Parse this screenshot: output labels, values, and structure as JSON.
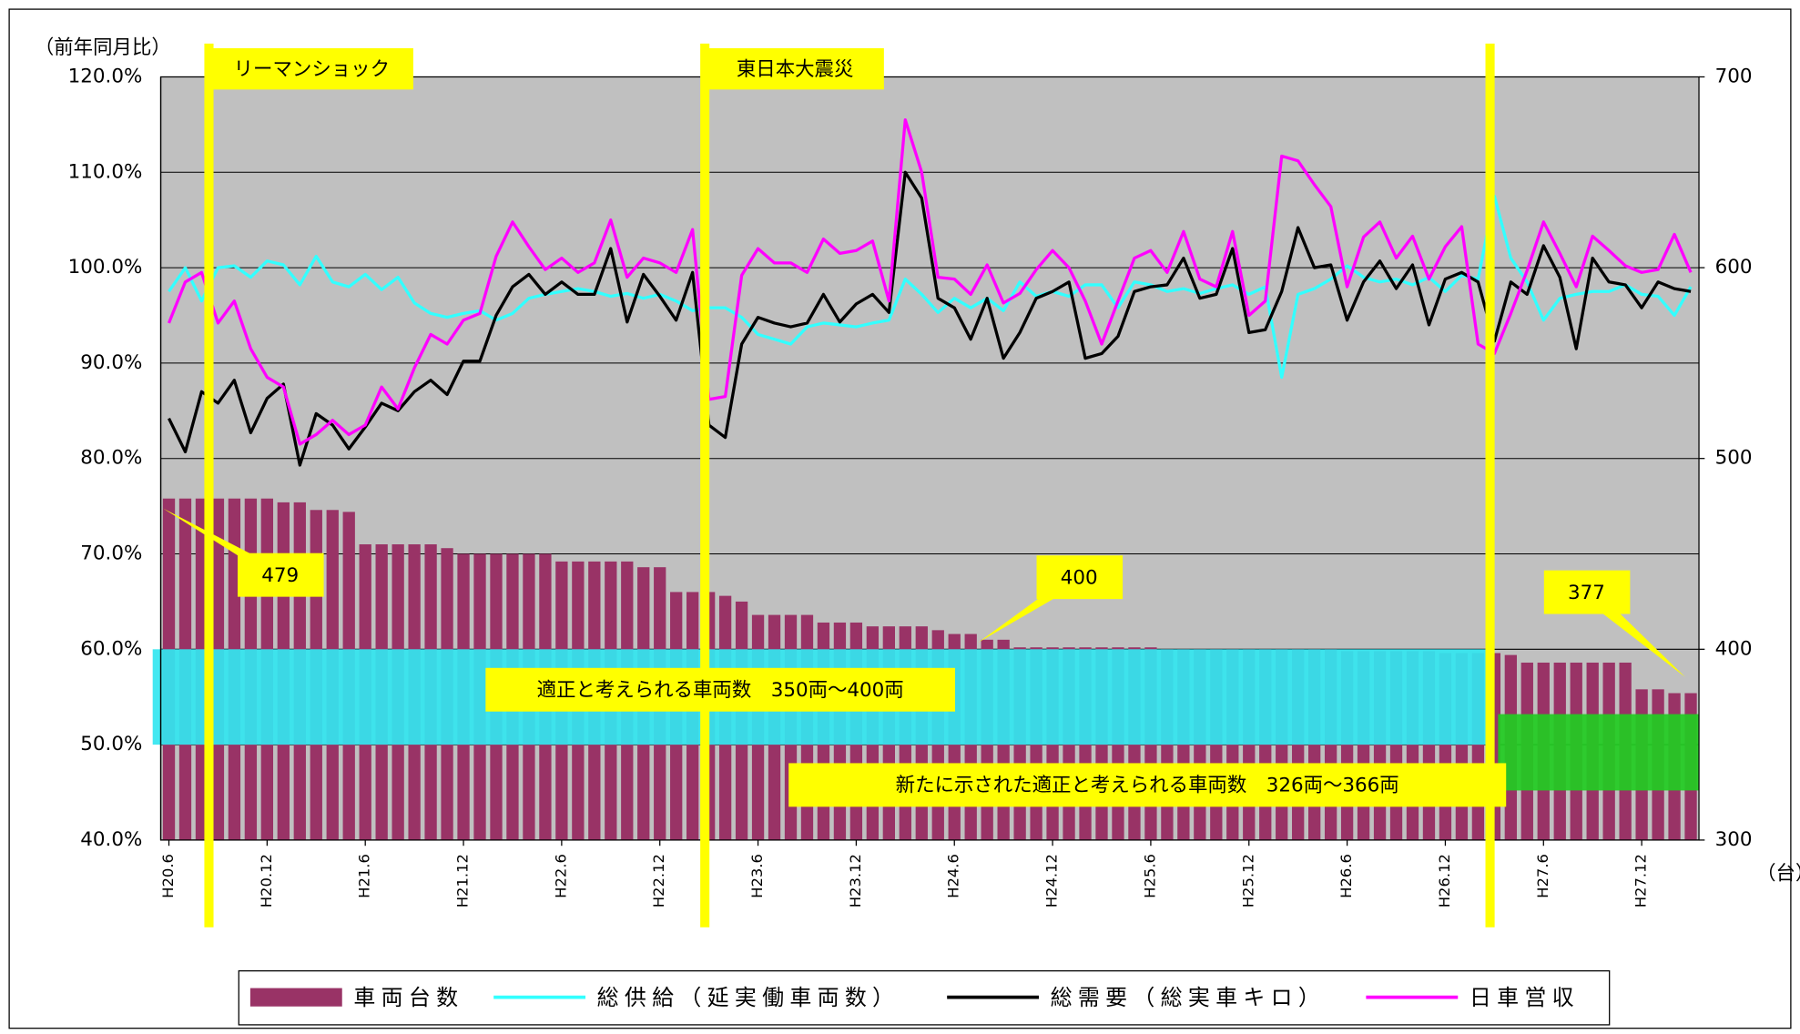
{
  "chart_data": {
    "type": "combo",
    "y_label": "（前年同月比）",
    "y2_label": "（台）",
    "categories": [
      "H20.6",
      null,
      null,
      null,
      null,
      null,
      "H20.12",
      null,
      null,
      null,
      null,
      null,
      "H21.6",
      null,
      null,
      null,
      null,
      null,
      "H21.12",
      null,
      null,
      null,
      null,
      null,
      "H22.6",
      null,
      null,
      null,
      null,
      null,
      "H22.12",
      null,
      null,
      null,
      null,
      null,
      "H23.6",
      null,
      null,
      null,
      null,
      null,
      "H23.12",
      null,
      null,
      null,
      null,
      null,
      "H24.6",
      null,
      null,
      null,
      null,
      null,
      "H24.12",
      null,
      null,
      null,
      null,
      null,
      "H25.6",
      null,
      null,
      null,
      null,
      null,
      "H25.12",
      null,
      null,
      null,
      null,
      null,
      "H26.6",
      null,
      null,
      null,
      null,
      null,
      "H26.12",
      null,
      null,
      null,
      null,
      null,
      "H27.6",
      null,
      null,
      null,
      null,
      null,
      "H27.12",
      null,
      null,
      null
    ],
    "series": [
      {
        "name": "車両台数",
        "type": "bar",
        "axis": "y2",
        "color": "#993366",
        "values": [
          479,
          479,
          479,
          479,
          479,
          479,
          479,
          477,
          477,
          473,
          473,
          472,
          455,
          455,
          455,
          455,
          455,
          453,
          450,
          450,
          450,
          450,
          450,
          450,
          446,
          446,
          446,
          446,
          446,
          443,
          443,
          430,
          430,
          430,
          428,
          425,
          418,
          418,
          418,
          418,
          414,
          414,
          414,
          412,
          412,
          412,
          412,
          410,
          408,
          408,
          405,
          405,
          401,
          401,
          401,
          401,
          401,
          401,
          401,
          401,
          401,
          400,
          400,
          400,
          400,
          400,
          400,
          400,
          400,
          400,
          400,
          400,
          399,
          399,
          399,
          399,
          399,
          399,
          398,
          398,
          398,
          398,
          397,
          393,
          393,
          393,
          393,
          393,
          393,
          393,
          379,
          379,
          377,
          377
        ]
      },
      {
        "name": "総供給（延実働車両数）",
        "type": "line",
        "axis": "y",
        "color": "#33ffff",
        "values": [
          97.5,
          100,
          96.5,
          100,
          100.2,
          99,
          100.7,
          100.3,
          98.2,
          101.2,
          98.5,
          98,
          99.3,
          97.7,
          99,
          96.3,
          95.2,
          94.8,
          95.2,
          95.5,
          94.5,
          95.2,
          96.8,
          97.2,
          97.5,
          97.8,
          97.5,
          97,
          97.3,
          96.8,
          97.2,
          96.5,
          95.5,
          95.8,
          95.8,
          94.8,
          93,
          92.5,
          92,
          93.8,
          94.2,
          94,
          93.8,
          94.2,
          94.5,
          98.8,
          97.2,
          95.3,
          96.8,
          95.8,
          96.8,
          95.5,
          98.5,
          97,
          97.5,
          97,
          98.2,
          98.2,
          95.8,
          98.5,
          98.2,
          97.5,
          97.8,
          97.3,
          97.8,
          98.2,
          97.2,
          98,
          88.5,
          97.2,
          97.8,
          98.8,
          100.2,
          99,
          98.5,
          98.8,
          98.2,
          99,
          97.5,
          99.2,
          98.8,
          107.5,
          101,
          98.5,
          94.5,
          96.8,
          97.2,
          97.5,
          97.5,
          98.2,
          97.2,
          97,
          95,
          98
        ]
      },
      {
        "name": "総需要（総実車キロ）",
        "type": "line",
        "axis": "y",
        "color": "#000000",
        "values": [
          84.2,
          80.7,
          87,
          85.8,
          88.2,
          82.7,
          86.3,
          87.8,
          79.3,
          84.7,
          83.5,
          81,
          83.3,
          85.8,
          85,
          87,
          88.2,
          86.7,
          90.2,
          90.2,
          95,
          98,
          99.3,
          97.2,
          98.5,
          97.2,
          97.2,
          102,
          94.3,
          99.3,
          97,
          94.5,
          99.5,
          83.5,
          82.2,
          92,
          94.8,
          94.2,
          93.8,
          94.2,
          97.2,
          94.3,
          96.2,
          97.2,
          95.3,
          110,
          107.3,
          96.8,
          95.8,
          92.5,
          96.8,
          90.5,
          93.2,
          96.8,
          97.5,
          98.5,
          90.5,
          91,
          92.8,
          97.5,
          98,
          98.2,
          101,
          96.8,
          97.2,
          102,
          93.2,
          93.5,
          97.5,
          104.2,
          100,
          100.3,
          94.5,
          98.5,
          100.7,
          97.8,
          100.3,
          94,
          98.8,
          99.5,
          98.5,
          92.3,
          98.5,
          97.2,
          102.3,
          99,
          91.5,
          101,
          98.5,
          98.2,
          95.8,
          98.5,
          97.8,
          97.5
        ]
      },
      {
        "name": "日車営収",
        "type": "line",
        "axis": "y",
        "color": "#ff00ff",
        "values": [
          94.2,
          98.5,
          99.5,
          94.2,
          96.5,
          91.5,
          88.5,
          87.5,
          81.5,
          82.5,
          84,
          82.5,
          83.5,
          87.5,
          85.2,
          89.5,
          93,
          92,
          94.5,
          95.2,
          101.2,
          104.8,
          102.2,
          99.8,
          101,
          99.5,
          100.5,
          105,
          99,
          101,
          100.5,
          99.5,
          104,
          86.2,
          86.5,
          99.2,
          102,
          100.5,
          100.5,
          99.5,
          103,
          101.5,
          101.8,
          102.8,
          96.5,
          115.5,
          110,
          99,
          98.8,
          97.2,
          100.3,
          96.3,
          97.3,
          99.8,
          101.8,
          100,
          96.5,
          92,
          96.5,
          101,
          101.8,
          99.5,
          103.8,
          98.8,
          98,
          103.8,
          95,
          96.5,
          111.7,
          111.2,
          108.7,
          106.4,
          98,
          103.2,
          104.8,
          101,
          103.3,
          98.8,
          102.2,
          104.3,
          92,
          91,
          95.2,
          99.7,
          104.8,
          101.5,
          98,
          103.3,
          101.8,
          100.2,
          99.5,
          99.8,
          103.5,
          99.5
        ]
      }
    ],
    "ylim": [
      40,
      120
    ],
    "yticks": [
      {
        "value": 40,
        "label": "40.0%"
      },
      {
        "value": 50,
        "label": "50.0%"
      },
      {
        "value": 60,
        "label": "60.0%"
      },
      {
        "value": 70,
        "label": "70.0%"
      },
      {
        "value": 80,
        "label": "80.0%"
      },
      {
        "value": 90,
        "label": "90.0%"
      },
      {
        "value": 100,
        "label": "100.0%"
      },
      {
        "value": 110,
        "label": "110.0%"
      },
      {
        "value": 120,
        "label": "120.0%"
      }
    ],
    "y2lim": [
      300,
      700
    ],
    "y2ticks": [
      300,
      400,
      500,
      600,
      700
    ],
    "grid": true,
    "background": "#c0c0c0",
    "events": [
      {
        "label": "リーマンショック"
      },
      {
        "label": "東日本大震災"
      },
      {
        "label": null
      }
    ],
    "event_color": "#ffff00",
    "bands": [
      {
        "label": "適正と考えられる車両数　350両～400両",
        "range": [
          350,
          400
        ],
        "color": "#33e6f0"
      },
      {
        "label": "新たに示された適正と考えられる車両数　326両～366両",
        "range": [
          326,
          366
        ],
        "color": "#22cc22"
      }
    ],
    "callouts": [
      479,
      400,
      377
    ],
    "legend": "bottom"
  }
}
